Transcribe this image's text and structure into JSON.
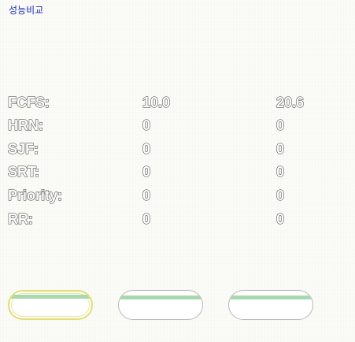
{
  "title": "성능비교",
  "rows": [
    {
      "label": "FCFS:",
      "v1": "10.0",
      "v2": "20.6"
    },
    {
      "label": "HRN:",
      "v1": "0",
      "v2": "0"
    },
    {
      "label": "SJF:",
      "v1": "0",
      "v2": "0"
    },
    {
      "label": "SRT:",
      "v1": "0",
      "v2": "0"
    },
    {
      "label": "Priority:",
      "v1": "0",
      "v2": "0"
    },
    {
      "label": "RR:",
      "v1": "0",
      "v2": "0"
    }
  ],
  "colors": {
    "title": "#1f2fb8",
    "button_stripe": "#a8d8ad",
    "active_border": "#e2de74"
  }
}
